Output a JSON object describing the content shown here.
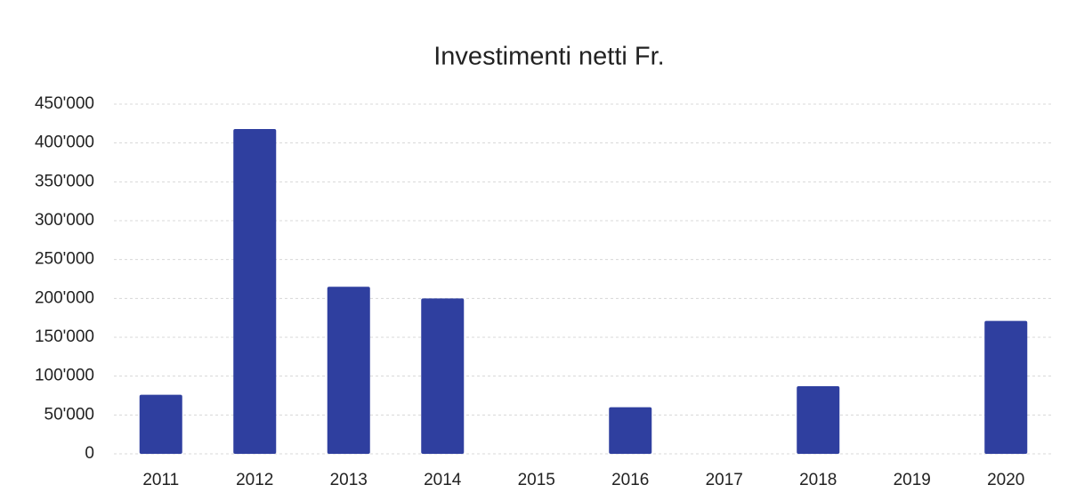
{
  "chart_data": {
    "type": "bar",
    "title": "Investimenti netti Fr.",
    "categories": [
      "2011",
      "2012",
      "2013",
      "2014",
      "2015",
      "2016",
      "2017",
      "2018",
      "2019",
      "2020"
    ],
    "values": [
      76000,
      418000,
      215000,
      200000,
      0,
      60000,
      0,
      87000,
      0,
      171000
    ],
    "color": "#2f3f9f",
    "ylim": [
      0,
      450000
    ],
    "yticks": [
      0,
      {
        "value": 50000,
        "label": "50'000"
      },
      {
        "value": 100000,
        "label": "100'000"
      },
      {
        "value": 150000,
        "label": "150'000"
      },
      {
        "value": 200000,
        "label": "200'000"
      },
      {
        "value": 250000,
        "label": "250'000"
      },
      {
        "value": 300000,
        "label": "300'000"
      },
      {
        "value": 350000,
        "label": "350'000"
      },
      {
        "value": 400000,
        "label": "400'000"
      },
      {
        "value": 450000,
        "label": "450'000"
      }
    ],
    "grid": true
  }
}
